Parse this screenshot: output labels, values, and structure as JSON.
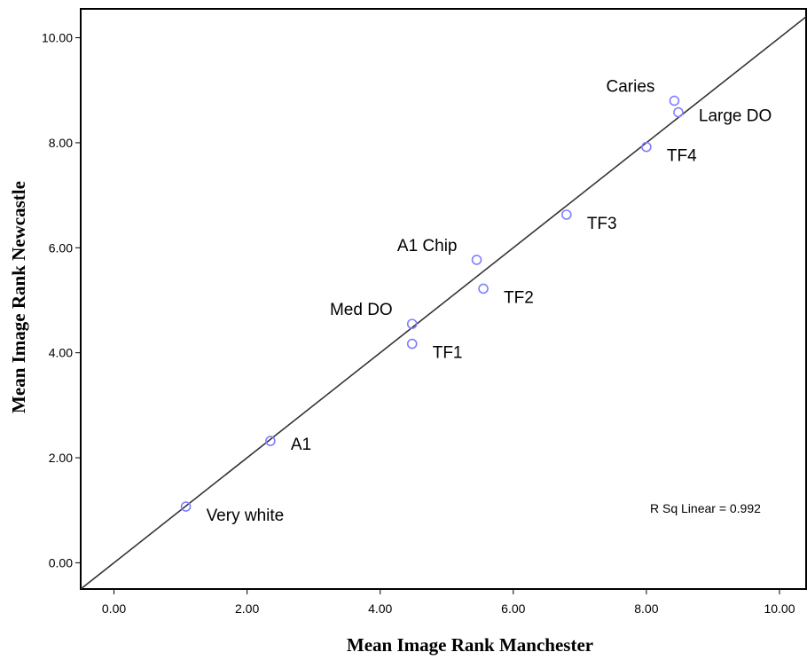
{
  "chart_data": {
    "type": "scatter",
    "xlabel": "Mean Image Rank Manchester",
    "ylabel": "Mean Image Rank Newcastle",
    "xlim": [
      -0.5,
      10.4
    ],
    "ylim": [
      -0.5,
      10.55
    ],
    "xticks": [
      "0.00",
      "2.00",
      "4.00",
      "6.00",
      "8.00",
      "10.00"
    ],
    "yticks": [
      "0.00",
      "2.00",
      "4.00",
      "6.00",
      "8.00",
      "10.00"
    ],
    "grid": false,
    "points": [
      {
        "label": "Very white",
        "x": 1.08,
        "y": 1.07,
        "label_pos": "right-below"
      },
      {
        "label": "A1",
        "x": 2.35,
        "y": 2.32,
        "label_pos": "right"
      },
      {
        "label": "TF1",
        "x": 4.48,
        "y": 4.17,
        "label_pos": "right-below"
      },
      {
        "label": "Med DO",
        "x": 4.48,
        "y": 4.55,
        "label_pos": "left-above"
      },
      {
        "label": "TF2",
        "x": 5.55,
        "y": 5.22,
        "label_pos": "right-below"
      },
      {
        "label": "A1 Chip",
        "x": 5.45,
        "y": 5.77,
        "label_pos": "left-above"
      },
      {
        "label": "TF3",
        "x": 6.8,
        "y": 6.63,
        "label_pos": "right-below"
      },
      {
        "label": "TF4",
        "x": 8.0,
        "y": 7.92,
        "label_pos": "right-below"
      },
      {
        "label": "Large DO",
        "x": 8.48,
        "y": 8.58,
        "label_pos": "right"
      },
      {
        "label": "Caries",
        "x": 8.42,
        "y": 8.8,
        "label_pos": "left-above"
      }
    ],
    "fit_line": {
      "type": "linear",
      "slope": 1.0,
      "intercept": 0.0
    },
    "annotation": "R Sq Linear = 0.992",
    "marker_color": "#7f7fff",
    "line_color": "#333333"
  }
}
